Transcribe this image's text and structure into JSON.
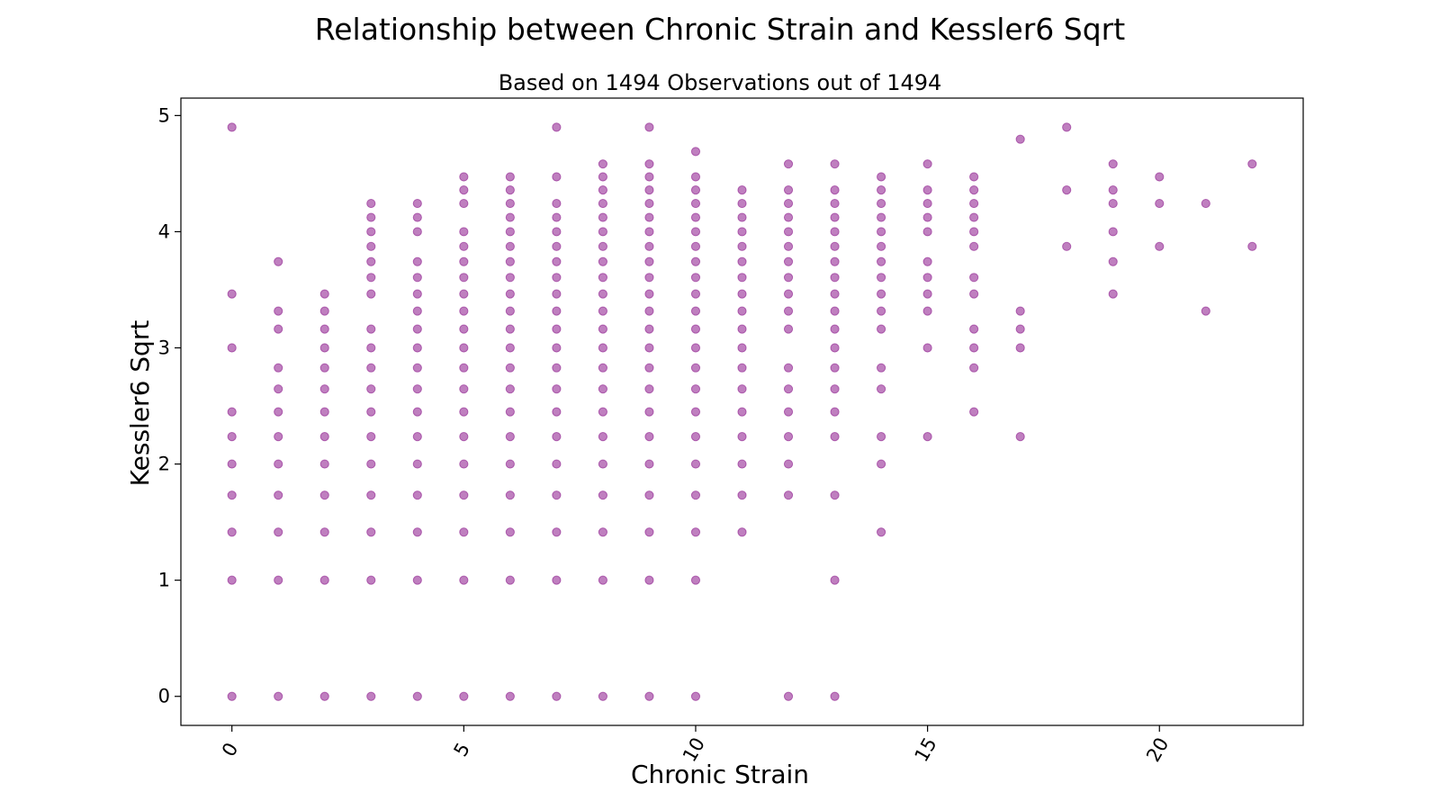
{
  "chart_data": {
    "type": "scatter",
    "title": "Relationship between Chronic Strain and Kessler6 Sqrt",
    "subtitle": "Based on 1494 Observations out of 1494",
    "xlabel": "Chronic Strain",
    "ylabel": "Kessler6 Sqrt",
    "xlim": [
      -1.1,
      23.1
    ],
    "ylim": [
      -0.25,
      5.15
    ],
    "xticks": [
      "0",
      "5",
      "10",
      "15",
      "20"
    ],
    "yticks": [
      "0",
      "1",
      "2",
      "3",
      "4",
      "5"
    ],
    "xtick_rotation_deg": -60,
    "grid": false,
    "legend": "none",
    "marker_color": "#800080",
    "marker_alpha": 0.5,
    "points": [
      {
        "x": 0,
        "y": [
          0,
          1,
          1.414,
          1.732,
          2,
          2.236,
          2.449,
          3,
          3.464,
          4.899
        ]
      },
      {
        "x": 1,
        "y": [
          0,
          1,
          1.414,
          1.732,
          2,
          2.236,
          2.449,
          2.646,
          2.828,
          3.162,
          3.317,
          3.742
        ]
      },
      {
        "x": 2,
        "y": [
          0,
          1,
          1.414,
          1.732,
          2,
          2.236,
          2.449,
          2.646,
          2.828,
          3,
          3.162,
          3.317,
          3.464
        ]
      },
      {
        "x": 3,
        "y": [
          0,
          1,
          1.414,
          1.732,
          2,
          2.236,
          2.449,
          2.646,
          2.828,
          3,
          3.162,
          3.464,
          3.606,
          3.742,
          3.873,
          4,
          4.123,
          4.243
        ]
      },
      {
        "x": 4,
        "y": [
          0,
          1,
          1.414,
          1.732,
          2,
          2.236,
          2.449,
          2.646,
          2.828,
          3,
          3.162,
          3.317,
          3.464,
          3.606,
          3.742,
          4,
          4.123,
          4.243
        ]
      },
      {
        "x": 5,
        "y": [
          0,
          1,
          1.414,
          1.732,
          2,
          2.236,
          2.449,
          2.646,
          2.828,
          3,
          3.162,
          3.317,
          3.464,
          3.606,
          3.742,
          3.873,
          4,
          4.243,
          4.359,
          4.472
        ]
      },
      {
        "x": 6,
        "y": [
          0,
          1,
          1.414,
          1.732,
          2,
          2.236,
          2.449,
          2.646,
          2.828,
          3,
          3.162,
          3.317,
          3.464,
          3.606,
          3.742,
          3.873,
          4,
          4.123,
          4.243,
          4.359,
          4.472
        ]
      },
      {
        "x": 7,
        "y": [
          0,
          1,
          1.414,
          1.732,
          2,
          2.236,
          2.449,
          2.646,
          2.828,
          3,
          3.162,
          3.317,
          3.464,
          3.606,
          3.742,
          3.873,
          4,
          4.123,
          4.243,
          4.472,
          4.899
        ]
      },
      {
        "x": 8,
        "y": [
          0,
          1,
          1.414,
          1.732,
          2,
          2.236,
          2.449,
          2.646,
          2.828,
          3,
          3.162,
          3.317,
          3.464,
          3.606,
          3.742,
          3.873,
          4,
          4.123,
          4.243,
          4.359,
          4.472,
          4.583
        ]
      },
      {
        "x": 9,
        "y": [
          0,
          1,
          1.414,
          1.732,
          2,
          2.236,
          2.449,
          2.646,
          2.828,
          3,
          3.162,
          3.317,
          3.464,
          3.606,
          3.742,
          3.873,
          4,
          4.123,
          4.243,
          4.359,
          4.472,
          4.583,
          4.899
        ]
      },
      {
        "x": 10,
        "y": [
          0,
          1,
          1.414,
          1.732,
          2,
          2.236,
          2.449,
          2.646,
          2.828,
          3,
          3.162,
          3.317,
          3.464,
          3.606,
          3.742,
          3.873,
          4,
          4.123,
          4.243,
          4.359,
          4.472,
          4.69
        ]
      },
      {
        "x": 11,
        "y": [
          1.414,
          1.732,
          2,
          2.236,
          2.449,
          2.646,
          2.828,
          3,
          3.162,
          3.317,
          3.464,
          3.606,
          3.742,
          3.873,
          4,
          4.123,
          4.243,
          4.359
        ]
      },
      {
        "x": 12,
        "y": [
          0,
          1.732,
          2,
          2.236,
          2.449,
          2.646,
          2.828,
          3.162,
          3.317,
          3.464,
          3.606,
          3.742,
          3.873,
          4,
          4.123,
          4.243,
          4.359,
          4.583
        ]
      },
      {
        "x": 13,
        "y": [
          0,
          1,
          1.732,
          2.236,
          2.449,
          2.646,
          2.828,
          3,
          3.162,
          3.317,
          3.464,
          3.606,
          3.742,
          3.873,
          4,
          4.123,
          4.243,
          4.359,
          4.583
        ]
      },
      {
        "x": 14,
        "y": [
          1.414,
          2,
          2.236,
          2.646,
          2.828,
          3.162,
          3.317,
          3.464,
          3.606,
          3.742,
          3.873,
          4,
          4.123,
          4.243,
          4.359,
          4.472
        ]
      },
      {
        "x": 15,
        "y": [
          2.236,
          3,
          3.317,
          3.464,
          3.606,
          3.742,
          4,
          4.123,
          4.243,
          4.359,
          4.583
        ]
      },
      {
        "x": 16,
        "y": [
          2.449,
          2.828,
          3,
          3.162,
          3.464,
          3.606,
          3.873,
          4,
          4.123,
          4.243,
          4.359,
          4.472
        ]
      },
      {
        "x": 17,
        "y": [
          2.236,
          3,
          3.162,
          3.317,
          4.796
        ]
      },
      {
        "x": 18,
        "y": [
          3.873,
          4.359,
          4.899
        ]
      },
      {
        "x": 19,
        "y": [
          3.464,
          3.742,
          4,
          4.243,
          4.359,
          4.583
        ]
      },
      {
        "x": 20,
        "y": [
          3.873,
          4.243,
          4.472
        ]
      },
      {
        "x": 21,
        "y": [
          3.317,
          4.243
        ]
      },
      {
        "x": 22,
        "y": [
          3.873,
          4.583
        ]
      }
    ]
  }
}
